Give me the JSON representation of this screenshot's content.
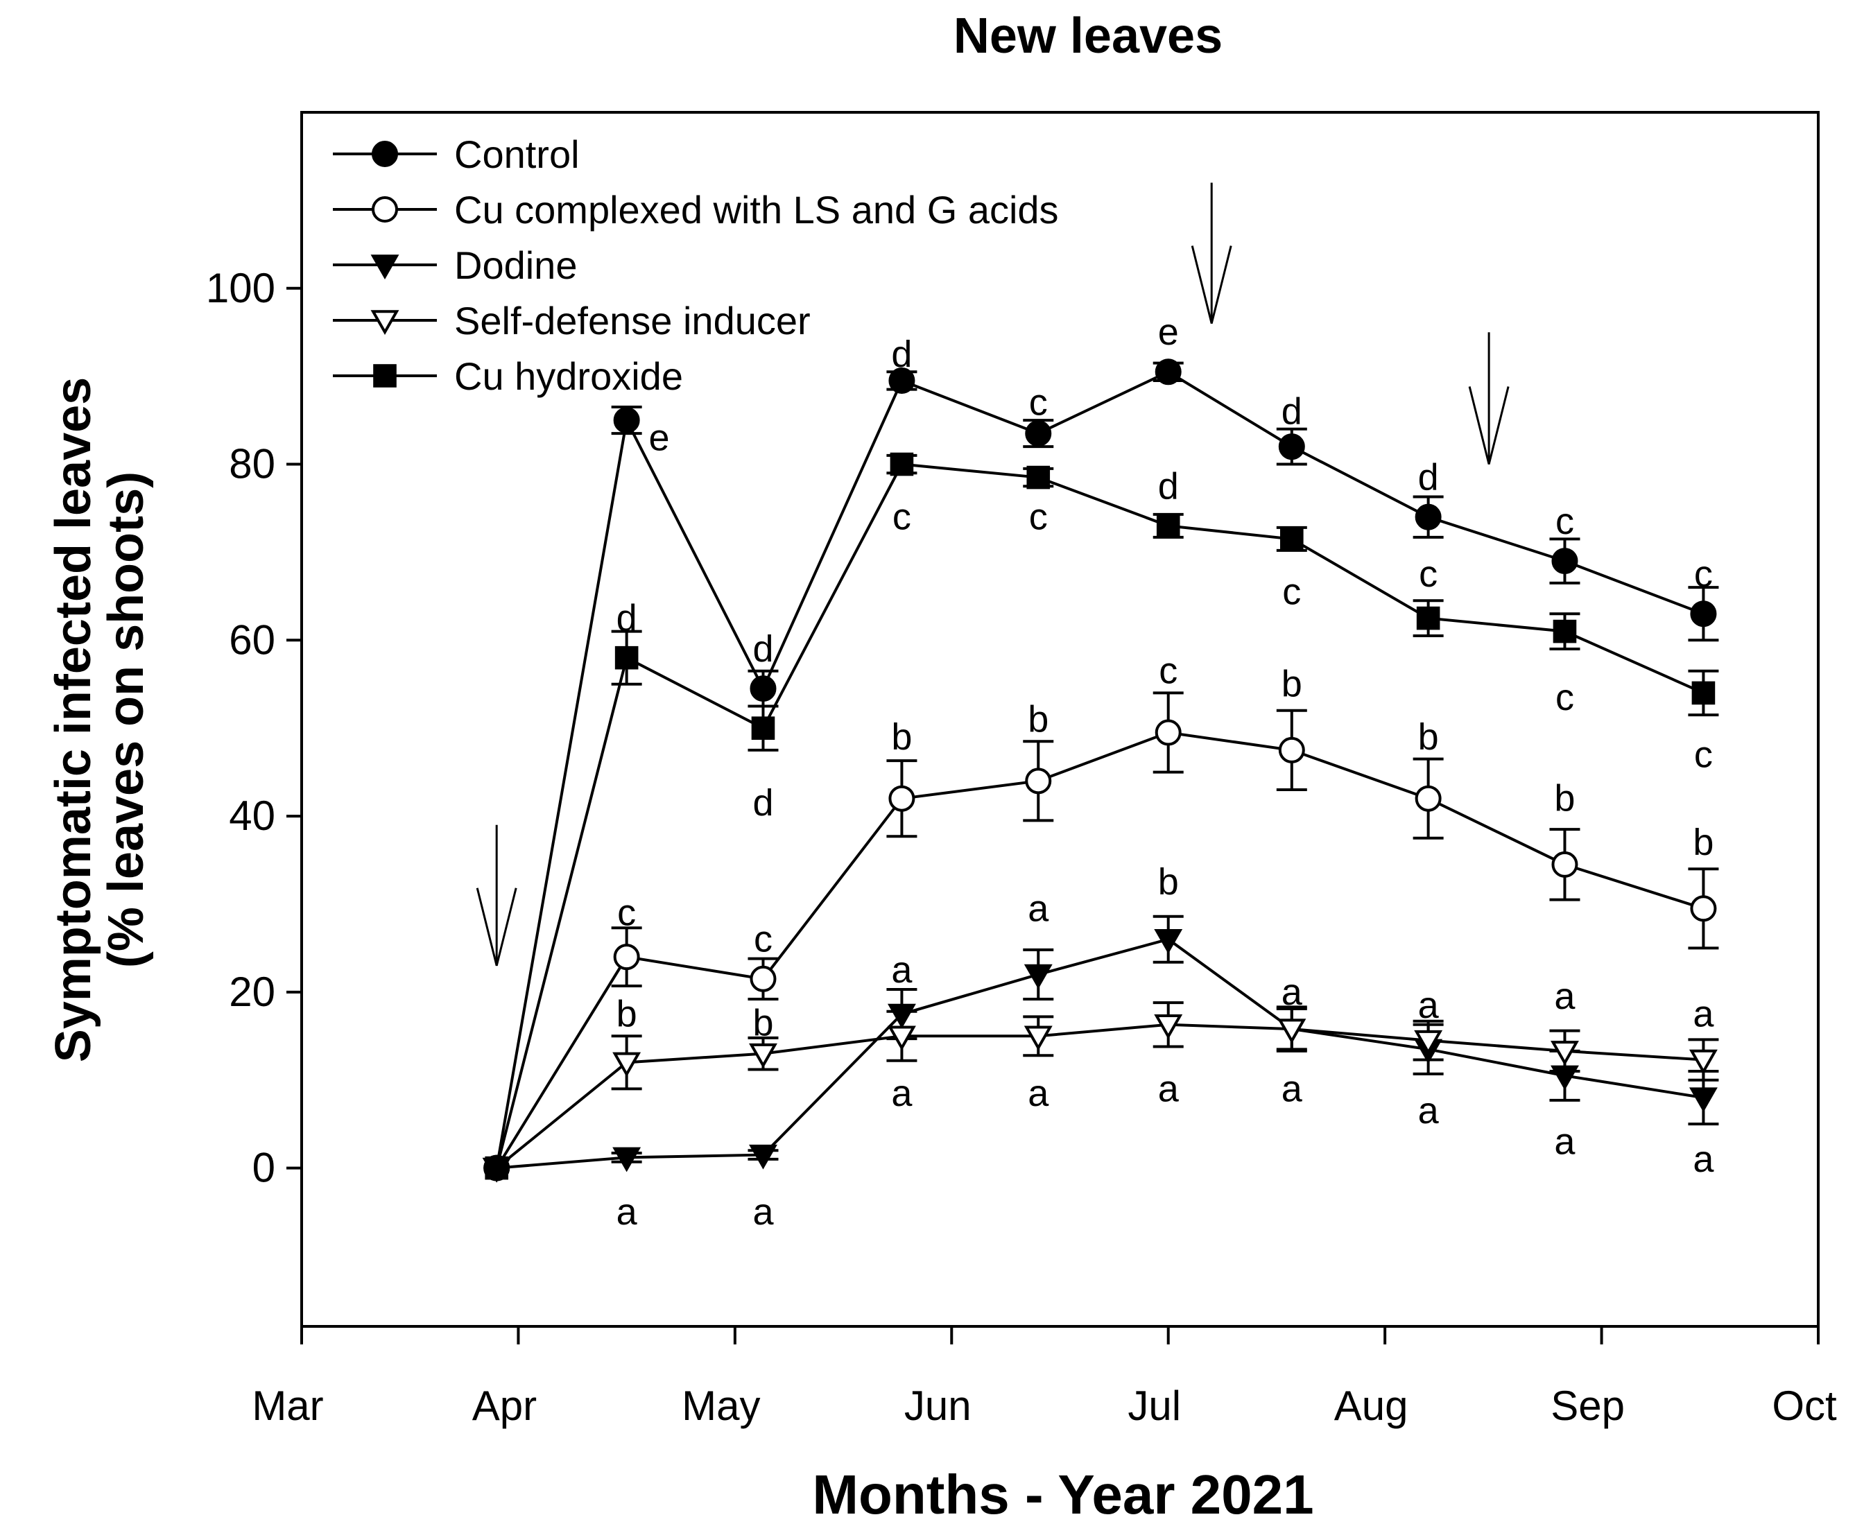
{
  "chart_data": {
    "type": "line",
    "title": "New leaves",
    "xlabel": "Months - Year 2021",
    "ylabel_line1": "Symptomatic infected leaves",
    "ylabel_line2": "(% leaves on shoots)",
    "xlim": [
      0,
      7
    ],
    "ylim": [
      -18,
      120
    ],
    "x_ticks": [
      {
        "value": 0,
        "label": "Mar"
      },
      {
        "value": 1,
        "label": "Apr"
      },
      {
        "value": 2,
        "label": "May"
      },
      {
        "value": 3,
        "label": "Jun"
      },
      {
        "value": 4,
        "label": "Jul"
      },
      {
        "value": 5,
        "label": "Aug"
      },
      {
        "value": 6,
        "label": "Sep"
      },
      {
        "value": 7,
        "label": "Oct"
      }
    ],
    "y_ticks": [
      {
        "value": 0,
        "label": "0"
      },
      {
        "value": 20,
        "label": "20"
      },
      {
        "value": 40,
        "label": "40"
      },
      {
        "value": 60,
        "label": "60"
      },
      {
        "value": 80,
        "label": "80"
      },
      {
        "value": 100,
        "label": "100"
      }
    ],
    "x": [
      0.9,
      1.5,
      2.13,
      2.77,
      3.4,
      4.0,
      4.57,
      5.2,
      5.83,
      6.47
    ],
    "treatment_arrows": [
      {
        "x": 0.9,
        "y_top": 39,
        "y_bottom": 23
      },
      {
        "x": 4.2,
        "y_top": 112,
        "y_bottom": 96
      },
      {
        "x": 5.48,
        "y_top": 95,
        "y_bottom": 80
      }
    ],
    "legend_position": "top-left",
    "series": [
      {
        "name": "Control",
        "marker": "filled-circle",
        "values": [
          0,
          85,
          54.5,
          89.5,
          83.5,
          90.5,
          82,
          74,
          69,
          63
        ],
        "errors": [
          0,
          1.5,
          2,
          1,
          1.5,
          1,
          2,
          2.3,
          2.5,
          3
        ],
        "letters": [
          {
            "text": "e",
            "dx": 0.15,
            "y": 83
          },
          {
            "text": "d",
            "dx": 0,
            "y": 59
          },
          {
            "text": "d",
            "dx": 0,
            "y": 92.5
          },
          {
            "text": "c",
            "dx": 0,
            "y": 87
          },
          {
            "text": "e",
            "dx": 0,
            "y": 95
          },
          {
            "text": "d",
            "dx": 0,
            "y": 86
          },
          {
            "text": "d",
            "dx": 0,
            "y": 78.5
          },
          {
            "text": "c",
            "dx": 0,
            "y": 73.5
          },
          {
            "text": "c",
            "dx": 0,
            "y": 67.5
          }
        ]
      },
      {
        "name": "Cu complexed with LS and G acids",
        "marker": "open-circle",
        "values": [
          0,
          24,
          21.5,
          42,
          44,
          49.5,
          47.5,
          42,
          34.5,
          29.5
        ],
        "errors": [
          0,
          3.3,
          2.3,
          4.3,
          4.5,
          4.5,
          4.5,
          4.5,
          4,
          4.5
        ],
        "letters": [
          {
            "text": "c",
            "dx": 0,
            "y": 29
          },
          {
            "text": "c",
            "dx": 0,
            "y": 26
          },
          {
            "text": "b",
            "dx": 0,
            "y": 49
          },
          {
            "text": "b",
            "dx": 0,
            "y": 51
          },
          {
            "text": "c",
            "dx": 0,
            "y": 56.5
          },
          {
            "text": "b",
            "dx": 0,
            "y": 55
          },
          {
            "text": "b",
            "dx": 0,
            "y": 49
          },
          {
            "text": "b",
            "dx": 0,
            "y": 42
          },
          {
            "text": "b",
            "dx": 0,
            "y": 37
          }
        ]
      },
      {
        "name": "Dodine",
        "marker": "filled-triangle-down",
        "values": [
          0,
          1.2,
          1.5,
          17.5,
          22,
          26,
          15.8,
          13.5,
          10.5,
          8
        ],
        "errors": [
          0,
          0.5,
          0.5,
          2.8,
          2.8,
          2.6,
          2.3,
          2.8,
          2.8,
          3
        ],
        "letters": [
          {
            "text": "a",
            "dx": 0,
            "y": -5
          },
          {
            "text": "a",
            "dx": 0,
            "y": -5
          },
          {
            "text": "a",
            "dx": 0,
            "y": 22.5
          },
          {
            "text": "a",
            "dx": 0,
            "y": 29.5
          },
          {
            "text": "b",
            "dx": 0,
            "y": 32.5
          },
          {
            "text": "a",
            "dx": 0,
            "y": 20
          },
          {
            "text": "a",
            "dx": 0,
            "y": 18.5
          },
          {
            "text": "a",
            "dx": 0,
            "y": 19.5
          },
          {
            "text": "a",
            "dx": 0,
            "y": 17.5
          }
        ]
      },
      {
        "name": "Self-defense inducer",
        "marker": "open-triangle-down",
        "values": [
          0,
          12,
          13,
          15,
          15,
          16.3,
          15.8,
          14.5,
          13.3,
          12.3
        ],
        "errors": [
          0,
          3,
          1.8,
          2.8,
          2.2,
          2.5,
          2.5,
          2.2,
          2.3,
          2.3
        ],
        "letters": [
          {
            "text": "b",
            "dx": 0,
            "y": 17.5
          },
          {
            "text": "b",
            "dx": 0,
            "y": 16.5
          },
          {
            "text": "a",
            "dx": 0,
            "y": 8.5
          },
          {
            "text": "a",
            "dx": 0,
            "y": 8.5
          },
          {
            "text": "a",
            "dx": 0,
            "y": 9
          },
          {
            "text": "a",
            "dx": 0,
            "y": 9
          },
          {
            "text": "a",
            "dx": 0,
            "y": 6.5
          },
          {
            "text": "a",
            "dx": 0,
            "y": 3
          },
          {
            "text": "a",
            "dx": 0,
            "y": 1
          }
        ]
      },
      {
        "name": "Cu hydroxide",
        "marker": "filled-square",
        "values": [
          0,
          58,
          50,
          80,
          78.5,
          73,
          71.5,
          62.5,
          61,
          54
        ],
        "errors": [
          0,
          3,
          2.5,
          1,
          1,
          1.3,
          1.3,
          2,
          2,
          2.5
        ],
        "letters": [
          {
            "text": "d",
            "dx": 0,
            "y": 62.5
          },
          {
            "text": "d",
            "dx": 0,
            "y": 41.5
          },
          {
            "text": "c",
            "dx": 0,
            "y": 74
          },
          {
            "text": "c",
            "dx": 0,
            "y": 74
          },
          {
            "text": "d",
            "dx": 0,
            "y": 77.5
          },
          {
            "text": "c",
            "dx": 0,
            "y": 65.5
          },
          {
            "text": "c",
            "dx": 0,
            "y": 67.5
          },
          {
            "text": "c",
            "dx": 0,
            "y": 53.5
          },
          {
            "text": "c",
            "dx": 0,
            "y": 47
          }
        ]
      }
    ]
  }
}
